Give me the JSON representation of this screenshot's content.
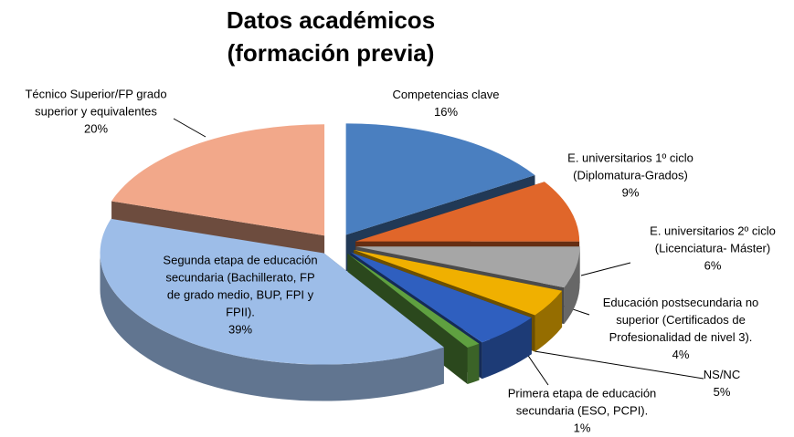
{
  "chart_data": {
    "type": "pie3d",
    "title": "Datos académicos (formación previa)",
    "categories": [
      "Competencias clave",
      "E. universitarios 1º ciclo (Diplomatura-Grados)",
      "E. universitarios 2º ciclo (Licenciatura- Máster)",
      "Educación postsecundaria no superior (Certificados de Profesionalidad de nivel 3).",
      "NS/NC",
      "Primera etapa de educación secundaria (ESO, PCPI).",
      "Segunda etapa de educación secundaria (Bachillerato, FP de grado medio, BUP, FPI y FPII).",
      "Técnico Superior/FP grado superior y equivalentes"
    ],
    "values": [
      16,
      9,
      6,
      4,
      5,
      1,
      39,
      20
    ],
    "value_labels": [
      "16%",
      "9%",
      "6%",
      "4%",
      "5%",
      "1%",
      "39%",
      "20%"
    ],
    "colors": [
      "#4a7fc0",
      "#e0662a",
      "#a6a6a6",
      "#f0b000",
      "#2f5fbf",
      "#5fa040",
      "#9dbde8",
      "#f2a88a"
    ]
  }
}
